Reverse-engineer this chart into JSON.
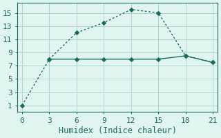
{
  "line1_x": [
    0,
    3,
    6,
    9,
    12,
    15,
    18,
    21
  ],
  "line1_y": [
    1,
    8,
    12,
    13.5,
    15.5,
    15,
    8.5,
    7.5
  ],
  "line2_x": [
    3,
    6,
    9,
    12,
    15,
    18,
    21
  ],
  "line2_y": [
    8,
    8,
    8,
    8,
    8,
    8.5,
    7.5
  ],
  "line_color": "#1a6b5a",
  "bg_color": "#e0f5f0",
  "grid_color": "#aed4cc",
  "spine_color": "#1a6b5a",
  "xlabel": "Humidex (Indice chaleur)",
  "xlim": [
    -0.5,
    21.5
  ],
  "ylim": [
    0,
    16.5
  ],
  "xticks": [
    0,
    3,
    6,
    9,
    12,
    15,
    18,
    21
  ],
  "yticks": [
    1,
    3,
    5,
    7,
    9,
    11,
    13,
    15
  ],
  "tick_fontsize": 8,
  "label_fontsize": 8.5
}
